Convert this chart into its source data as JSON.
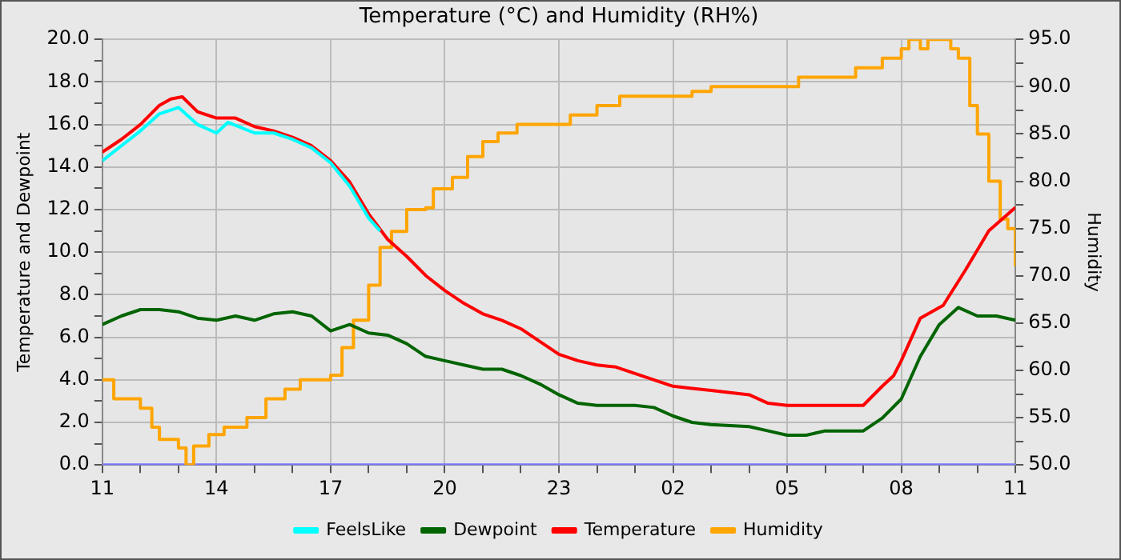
{
  "chart_data": {
    "type": "line",
    "title": "Temperature (°C) and Humidity (RH%)",
    "ylabel": "Temperature and Dewpoint",
    "y2label": "Humidity",
    "xlim": [
      "--01-01T11:00",
      "--01-02T11:00"
    ],
    "xticks": [
      {
        "value": "--01-01T11:00",
        "label": "11"
      },
      {
        "value": "--01-01T12:00",
        "label": null
      },
      {
        "value": "--01-01T13:00",
        "label": null
      },
      {
        "value": "--01-01T14:00",
        "label": "14"
      },
      {
        "value": "--01-01T15:00",
        "label": null
      },
      {
        "value": "--01-01T16:00",
        "label": null
      },
      {
        "value": "--01-01T17:00",
        "label": "17"
      },
      {
        "value": "--01-01T18:00",
        "label": null
      },
      {
        "value": "--01-01T19:00",
        "label": null
      },
      {
        "value": "--01-01T20:00",
        "label": "20"
      },
      {
        "value": "--01-01T21:00",
        "label": null
      },
      {
        "value": "--01-01T22:00",
        "label": null
      },
      {
        "value": "--01-01T23:00",
        "label": "23"
      },
      {
        "value": "--01-02T00:00",
        "label": null
      },
      {
        "value": "--01-02T01:00",
        "label": null
      },
      {
        "value": "--01-02T02:00",
        "label": "02"
      },
      {
        "value": "--01-02T03:00",
        "label": null
      },
      {
        "value": "--01-02T04:00",
        "label": null
      },
      {
        "value": "--01-02T05:00",
        "label": "05"
      },
      {
        "value": "--01-02T06:00",
        "label": null
      },
      {
        "value": "--01-02T07:00",
        "label": null
      },
      {
        "value": "--01-02T08:00",
        "label": "08"
      },
      {
        "value": "--01-02T09:00",
        "label": null
      },
      {
        "value": "--01-02T10:00",
        "label": null
      },
      {
        "value": "--01-02T11:00",
        "label": "11"
      }
    ],
    "ylim": [
      0,
      20
    ],
    "yticks": [
      {
        "value": 0,
        "label": "0.0"
      },
      {
        "value": 1,
        "label": null
      },
      {
        "value": 2,
        "label": "2.0"
      },
      {
        "value": 3,
        "label": null
      },
      {
        "value": 4,
        "label": "4.0"
      },
      {
        "value": 5,
        "label": null
      },
      {
        "value": 6,
        "label": "6.0"
      },
      {
        "value": 7,
        "label": null
      },
      {
        "value": 8,
        "label": "8.0"
      },
      {
        "value": 9,
        "label": null
      },
      {
        "value": 10,
        "label": "10.0"
      },
      {
        "value": 11,
        "label": null
      },
      {
        "value": 12,
        "label": "12.0"
      },
      {
        "value": 13,
        "label": null
      },
      {
        "value": 14,
        "label": "14.0"
      },
      {
        "value": 15,
        "label": null
      },
      {
        "value": 16,
        "label": "16.0"
      },
      {
        "value": 17,
        "label": null
      },
      {
        "value": 18,
        "label": "18.0"
      },
      {
        "value": 19,
        "label": null
      },
      {
        "value": 20,
        "label": "20.0"
      }
    ],
    "y2lim": [
      50,
      95
    ],
    "y2ticks": [
      {
        "value": 50,
        "label": "50.0"
      },
      {
        "value": 52.5,
        "label": null
      },
      {
        "value": 55,
        "label": "55.0"
      },
      {
        "value": 57.5,
        "label": null
      },
      {
        "value": 60,
        "label": "60.0"
      },
      {
        "value": 62.5,
        "label": null
      },
      {
        "value": 65,
        "label": "65.0"
      },
      {
        "value": 67.5,
        "label": null
      },
      {
        "value": 70,
        "label": "70.0"
      },
      {
        "value": 72.5,
        "label": null
      },
      {
        "value": 75,
        "label": "75.0"
      },
      {
        "value": 77.5,
        "label": null
      },
      {
        "value": 80,
        "label": "80.0"
      },
      {
        "value": 82.5,
        "label": null
      },
      {
        "value": 85,
        "label": "85.0"
      },
      {
        "value": 87.5,
        "label": null
      },
      {
        "value": 90,
        "label": "90.0"
      },
      {
        "value": 92.5,
        "label": null
      },
      {
        "value": 95,
        "label": "95.0"
      }
    ],
    "grid": true,
    "legend": "bottom",
    "marker": "none",
    "line_style": "solid",
    "series": [
      {
        "name": "FeelsLike",
        "color": "#00ffff",
        "x": [
          "--01-01T11:00",
          "--01-01T11:30",
          "--01-01T12:00",
          "--01-01T12:30",
          "--01-01T13:00",
          "--01-01T13:30",
          "--01-01T14:00",
          "--01-01T14:18",
          "--01-01T15:00",
          "--01-01T15:30",
          "--01-01T16:00",
          "--01-01T16:30",
          "--01-01T17:00",
          "--01-01T17:30",
          "--01-01T18:00",
          "--01-01T18:18"
        ],
        "values": [
          14.3,
          15.0,
          15.7,
          16.5,
          16.8,
          16.0,
          15.6,
          16.1,
          15.6,
          15.6,
          15.3,
          14.9,
          14.2,
          13.1,
          11.6,
          11.0
        ]
      },
      {
        "name": "Dewpoint",
        "color": "#006400",
        "x": [
          "--01-01T11:00",
          "--01-01T11:30",
          "--01-01T12:00",
          "--01-01T12:30",
          "--01-01T13:00",
          "--01-01T13:30",
          "--01-01T14:00",
          "--01-01T14:30",
          "--01-01T15:00",
          "--01-01T15:30",
          "--01-01T16:00",
          "--01-01T16:30",
          "--01-01T17:00",
          "--01-01T17:30",
          "--01-01T18:00",
          "--01-01T18:30",
          "--01-01T19:00",
          "--01-01T19:30",
          "--01-01T20:00",
          "--01-01T20:30",
          "--01-01T21:00",
          "--01-01T21:30",
          "--01-01T22:00",
          "--01-01T22:30",
          "--01-01T23:00",
          "--01-01T23:30",
          "--01-02T00:00",
          "--01-02T01:00",
          "--01-02T01:30",
          "--01-02T02:00",
          "--01-02T02:30",
          "--01-02T03:00",
          "--01-02T04:00",
          "--01-02T04:30",
          "--01-02T05:00",
          "--01-02T05:30",
          "--01-02T06:00",
          "--01-02T07:00",
          "--01-02T07:30",
          "--01-02T08:00",
          "--01-02T08:30",
          "--01-02T09:00",
          "--01-02T09:30",
          "--01-02T10:00",
          "--01-02T10:30",
          "--01-02T11:00"
        ],
        "values": [
          6.6,
          7.0,
          7.3,
          7.3,
          7.2,
          6.9,
          6.8,
          7.0,
          6.8,
          7.1,
          7.2,
          7.0,
          6.3,
          6.6,
          6.2,
          6.1,
          5.7,
          5.1,
          4.9,
          4.7,
          4.5,
          4.5,
          4.2,
          3.8,
          3.3,
          2.9,
          2.8,
          2.8,
          2.7,
          2.3,
          2.0,
          1.9,
          1.8,
          1.6,
          1.4,
          1.4,
          1.6,
          1.6,
          2.2,
          3.1,
          5.1,
          6.6,
          7.4,
          7.0,
          7.0,
          6.8
        ]
      },
      {
        "name": "Temperature",
        "color": "#ff0000",
        "x": [
          "--01-01T11:00",
          "--01-01T11:30",
          "--01-01T12:00",
          "--01-01T12:30",
          "--01-01T12:48",
          "--01-01T13:06",
          "--01-01T13:30",
          "--01-01T14:00",
          "--01-01T14:30",
          "--01-01T15:00",
          "--01-01T15:30",
          "--01-01T16:00",
          "--01-01T16:30",
          "--01-01T17:00",
          "--01-01T17:30",
          "--01-01T18:00",
          "--01-01T18:30",
          "--01-01T19:00",
          "--01-01T19:30",
          "--01-01T20:00",
          "--01-01T20:30",
          "--01-01T21:00",
          "--01-01T21:30",
          "--01-01T22:00",
          "--01-01T22:30",
          "--01-01T23:00",
          "--01-01T23:30",
          "--01-02T00:00",
          "--01-02T00:30",
          "--01-02T01:00",
          "--01-02T01:30",
          "--01-02T02:00",
          "--01-02T02:30",
          "--01-02T03:00",
          "--01-02T04:00",
          "--01-02T04:30",
          "--01-02T05:00",
          "--01-02T06:00",
          "--01-02T07:00",
          "--01-02T07:30",
          "--01-02T07:48",
          "--01-02T08:00",
          "--01-02T08:30",
          "--01-02T09:06",
          "--01-02T09:42",
          "--01-02T10:18",
          "--01-02T11:00"
        ],
        "values": [
          14.7,
          15.3,
          16.0,
          16.9,
          17.2,
          17.3,
          16.6,
          16.3,
          16.3,
          15.9,
          15.7,
          15.4,
          15.0,
          14.3,
          13.3,
          11.8,
          10.6,
          9.8,
          8.9,
          8.2,
          7.6,
          7.1,
          6.8,
          6.4,
          5.8,
          5.2,
          4.9,
          4.7,
          4.6,
          4.3,
          4.0,
          3.7,
          3.6,
          3.5,
          3.3,
          2.9,
          2.8,
          2.8,
          2.8,
          3.7,
          4.2,
          4.9,
          6.9,
          7.5,
          9.2,
          11.0,
          12.1
        ]
      },
      {
        "name": "Humidity",
        "color": "#ffa500",
        "type": "step",
        "axis": "y2",
        "x": [
          "--01-01T11:00",
          "--01-01T11:18",
          "--01-01T12:00",
          "--01-01T12:18",
          "--01-01T12:30",
          "--01-01T13:00",
          "--01-01T13:12",
          "--01-01T13:24",
          "--01-01T13:48",
          "--01-01T14:12",
          "--01-01T14:48",
          "--01-01T15:18",
          "--01-01T15:48",
          "--01-01T16:12",
          "--01-01T17:00",
          "--01-01T17:18",
          "--01-01T17:36",
          "--01-01T18:00",
          "--01-01T18:18",
          "--01-01T18:36",
          "--01-01T19:00",
          "--01-01T19:30",
          "--01-01T19:42",
          "--01-01T20:12",
          "--01-01T20:36",
          "--01-01T21:00",
          "--01-01T21:24",
          "--01-01T21:54",
          "--01-01T23:18",
          "--01-02T00:00",
          "--01-02T00:36",
          "--01-02T02:30",
          "--01-02T03:00",
          "--01-02T05:18",
          "--01-02T06:48",
          "--01-02T07:30",
          "--01-02T08:00",
          "--01-02T08:12",
          "--01-02T08:30",
          "--01-02T08:42",
          "--01-02T09:18",
          "--01-02T09:30",
          "--01-02T09:48",
          "--01-02T10:00",
          "--01-02T10:18",
          "--01-02T10:36",
          "--01-02T10:48",
          "--01-02T11:00"
        ],
        "values": [
          59,
          57,
          56,
          54,
          52.7,
          51.8,
          50,
          52,
          53.2,
          54,
          55,
          57,
          58,
          59,
          59.5,
          62.4,
          65.3,
          69,
          73,
          74.7,
          77,
          77.2,
          79.2,
          80.4,
          82.6,
          84.2,
          85.1,
          86,
          87,
          88,
          89,
          89.5,
          90,
          91,
          92,
          93,
          94,
          95,
          94,
          95,
          94,
          93,
          88,
          85,
          80,
          76,
          75,
          71
        ]
      },
      {
        "color": "#7777ff",
        "x": [
          "--01-01T11:00",
          "--01-02T11:00"
        ],
        "values": [
          0,
          0
        ]
      }
    ]
  }
}
